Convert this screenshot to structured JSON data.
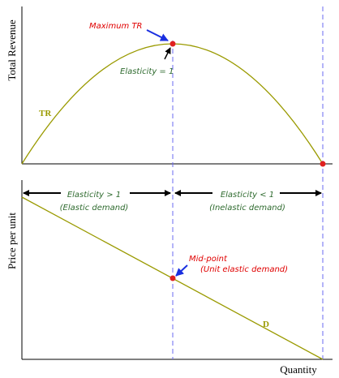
{
  "top_panel": {
    "y_axis_label": "Total Revenue",
    "curve_label": "TR",
    "max_label": "Maximum TR",
    "max_note": "Elasticity = 1"
  },
  "bottom_panel": {
    "y_axis_label": "Price per unit",
    "x_axis_label": "Quantity",
    "curve_label": "D",
    "left_region": {
      "title": "Elasticity > 1",
      "subtitle": "(Elastic demand)"
    },
    "right_region": {
      "title": "Elasticity < 1",
      "subtitle": "(Inelastic demand)"
    },
    "midpoint_label": "Mid-point",
    "midpoint_note": "(Unit elastic demand)"
  }
}
